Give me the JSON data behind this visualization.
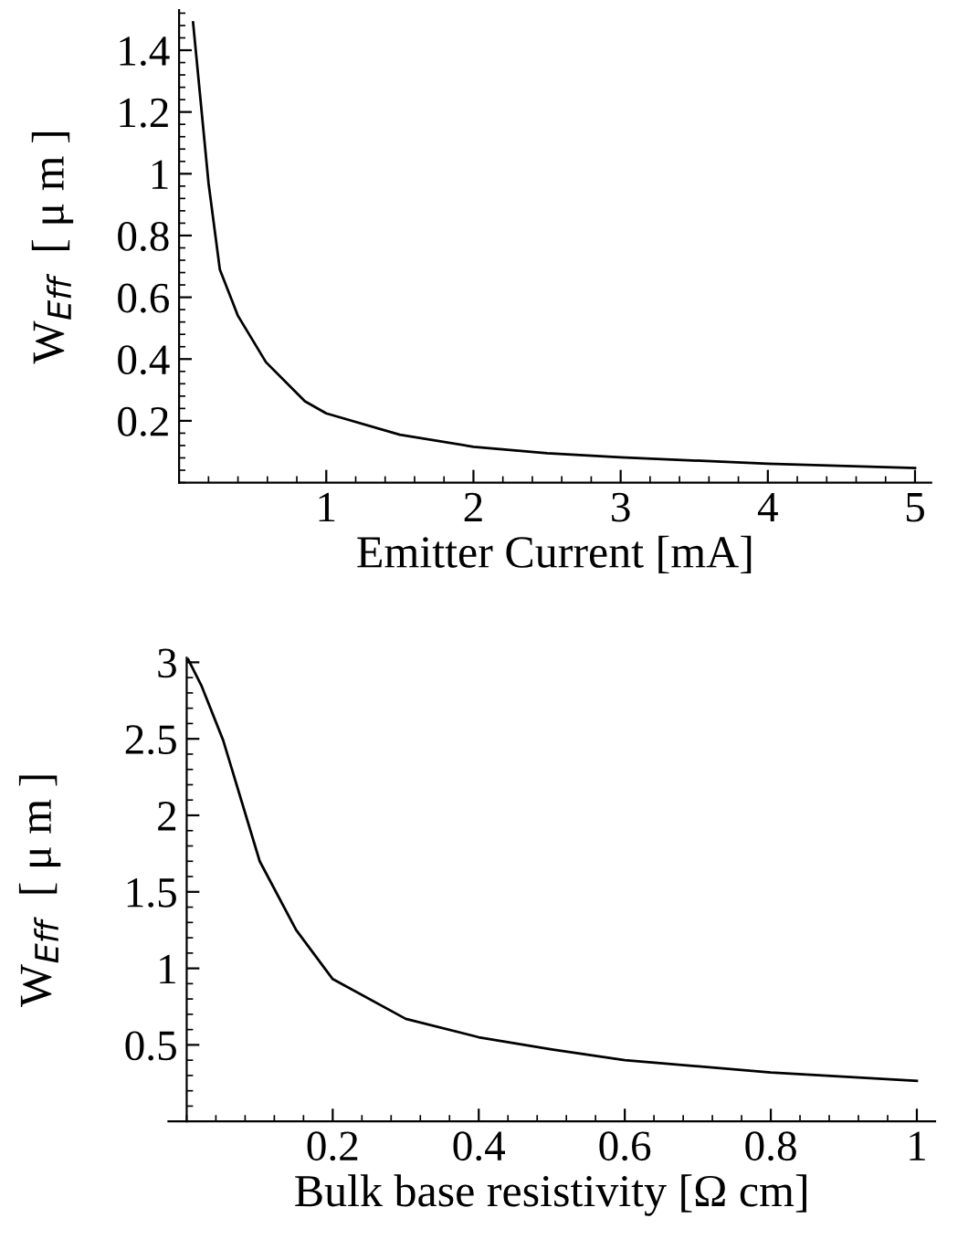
{
  "chart_data": [
    {
      "type": "line",
      "xlabel": "Emitter Current [mA]",
      "ylabel": "W$_{Eff}$  [ μ m ]",
      "marker": "none",
      "line_style": "solid",
      "grid": false,
      "legend": false,
      "x": [
        0.095,
        0.2,
        0.277,
        0.4,
        0.59,
        0.855,
        1,
        1.5,
        2,
        2.5,
        3,
        4,
        5
      ],
      "series": [
        {
          "color": "#000000",
          "values": [
            1.49,
            0.97,
            0.69,
            0.54,
            0.39,
            0.263,
            0.224,
            0.155,
            0.116,
            0.095,
            0.082,
            0.061,
            0.047
          ]
        }
      ],
      "xlim": [
        0,
        5.11
      ],
      "ylim": [
        0,
        1.53
      ],
      "xticks": [
        1,
        2,
        3,
        4,
        5
      ],
      "yticks": [
        0.2,
        0.4,
        0.6,
        0.8,
        1,
        1.2,
        1.4
      ]
    },
    {
      "type": "line",
      "xlabel": "Bulk base resistivity [Ω cm]",
      "ylabel": "W$_{Eff}$  [ μ m ]",
      "marker": "none",
      "line_style": "solid",
      "grid": false,
      "legend": false,
      "x": [
        0.002,
        0.02,
        0.05,
        0.1,
        0.15,
        0.2,
        0.3,
        0.4,
        0.5,
        0.6,
        0.8,
        1
      ],
      "series": [
        {
          "color": "#000000",
          "values": [
            3.02,
            2.85,
            2.49,
            1.7,
            1.25,
            0.93,
            0.67,
            0.55,
            0.47,
            0.4,
            0.32,
            0.265
          ]
        }
      ],
      "xlim": [
        -0.025,
        1.025
      ],
      "ylim": [
        0,
        3.03
      ],
      "xticks": [
        0.2,
        0.4,
        0.6,
        0.8,
        1
      ],
      "yticks": [
        0.5,
        1,
        1.5,
        2,
        2.5,
        3
      ]
    }
  ]
}
